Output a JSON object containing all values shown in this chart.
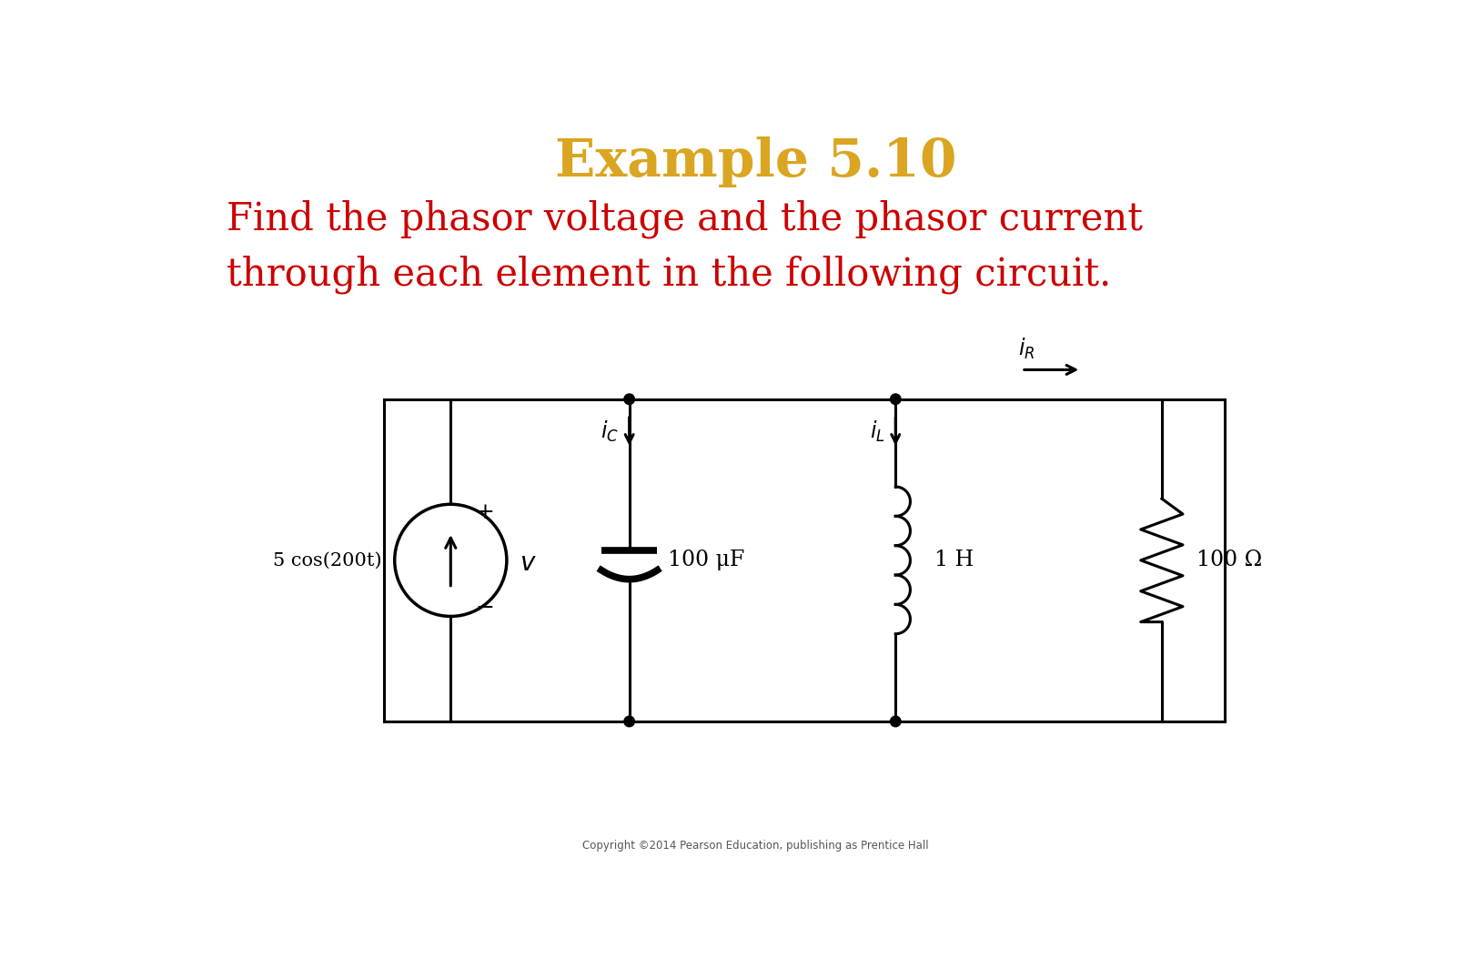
{
  "title": "Example 5.10",
  "title_color": "#DAA520",
  "title_fontsize": 42,
  "subtitle_line1": "Find the phasor voltage and the phasor current",
  "subtitle_line2": "through each element in the following circuit.",
  "subtitle_color": "#CC0000",
  "subtitle_fontsize": 30,
  "copyright": "Copyright ©2014 Pearson Education, publishing as Prentice Hall",
  "bg_color": "#FFFFFF",
  "lc": "#000000",
  "lw": 2.2,
  "source_label": "5 cos(200t)",
  "v_label": "v",
  "plus_label": "+",
  "minus_label": "−",
  "cap_label": "100 μF",
  "ind_label": "1 H",
  "res_label": "100 Ω",
  "dot_r": 0.075
}
